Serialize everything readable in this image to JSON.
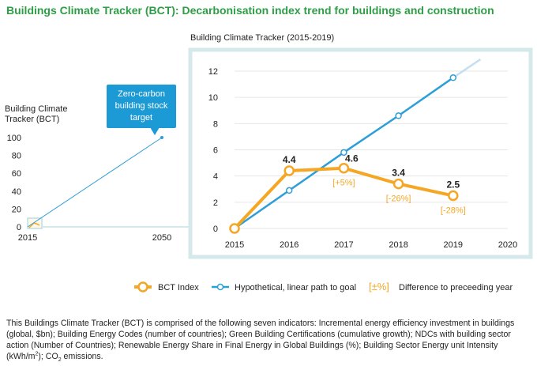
{
  "header": {
    "title": "Buildings Climate Tracker (BCT): Decarbonisation index trend for buildings and construction"
  },
  "chart_data": [
    {
      "type": "line",
      "name": "overview",
      "ylabel_line1": "Building Climate",
      "ylabel_line2": "Tracker (BCT)",
      "x_ticks": [
        "2015",
        "2050"
      ],
      "y_ticks": [
        0,
        20,
        40,
        60,
        80,
        100
      ],
      "xlim": [
        2015,
        2050
      ],
      "ylim": [
        0,
        100
      ],
      "target_line": [
        [
          2015,
          0
        ],
        [
          2050,
          100
        ]
      ],
      "callout_line1": "Zero-carbon",
      "callout_line2": "building stock",
      "callout_line3": "target",
      "colors": {
        "target": "#2c9ed8",
        "callout": "#1c9ad6",
        "axis": "#9aa0a6"
      }
    },
    {
      "type": "line",
      "name": "zoom",
      "title": "Building Climate Tracker (2015-2019)",
      "x_ticks": [
        2015,
        2016,
        2017,
        2018,
        2019,
        2020
      ],
      "y_ticks": [
        0,
        2,
        4,
        6,
        8,
        10,
        12
      ],
      "xlim": [
        2015,
        2020
      ],
      "ylim": [
        0,
        12
      ],
      "series": [
        {
          "name": "BCT Index",
          "color": "#f5a623",
          "points": [
            {
              "x": 2015,
              "y": 0
            },
            {
              "x": 2016,
              "y": 4.4,
              "label": "4.4"
            },
            {
              "x": 2017,
              "y": 4.6,
              "label": "4.6",
              "diff": "[+5%]"
            },
            {
              "x": 2018,
              "y": 3.4,
              "label": "3.4",
              "diff": "[-26%]"
            },
            {
              "x": 2019,
              "y": 2.5,
              "label": "2.5",
              "diff": "[-28%]"
            }
          ]
        },
        {
          "name": "Hypothetical, linear path to goal",
          "color": "#2c9ed8",
          "fade_color": "#c4dff1",
          "points": [
            {
              "x": 2015,
              "y": 0
            },
            {
              "x": 2016,
              "y": 2.9
            },
            {
              "x": 2017,
              "y": 5.8
            },
            {
              "x": 2018,
              "y": 8.6
            },
            {
              "x": 2019,
              "y": 11.5
            }
          ],
          "extension": [
            [
              2019,
              11.5
            ],
            [
              2019.5,
              12.9
            ]
          ]
        }
      ],
      "colors": {
        "frame": "#d5e8ea",
        "grid": "#e6e6e6"
      }
    }
  ],
  "legend": {
    "bct": "BCT Index",
    "path": "Hypothetical, linear path to goal",
    "diff_symbol": "[±%]",
    "diff": "Difference to preceeding year"
  },
  "footnote": {
    "part1": "This Buildings Climate Tracker (BCT) is comprised of the following seven indicators: Incremental energy efficiency investment in buildings (global, $bn); Building Energy Codes (number of countries); Green Building Certifications (cumulative growth); NDCs with building sector action (Number of Countries); Renewable Energy Share in Final Energy in Global Buildings (%); Building Sector Energy unit Intensity (kWh/m",
    "sup": "2",
    "part2": "); CO",
    "sub": "2",
    "part3": " emissions."
  }
}
